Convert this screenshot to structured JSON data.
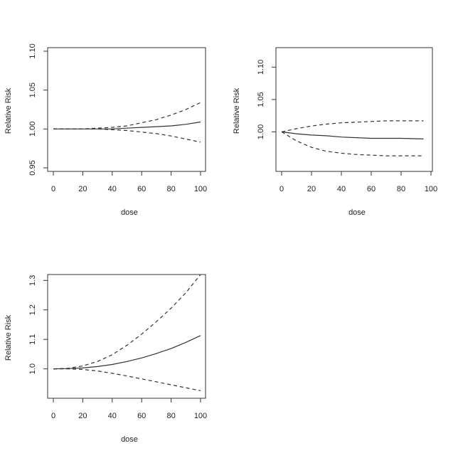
{
  "chart_data": [
    {
      "type": "line",
      "title": "",
      "xlabel": "dose",
      "ylabel": "Relative Risk",
      "xlim": [
        0,
        100
      ],
      "ylim": [
        0.95,
        1.1
      ],
      "xticks": [
        0,
        20,
        40,
        60,
        80,
        100
      ],
      "yticks": [
        0.95,
        1.0,
        1.05,
        1.1
      ],
      "ytick_labels": [
        "0.95",
        "1.00",
        "1.05",
        "1.10"
      ],
      "x": [
        0,
        10,
        20,
        30,
        40,
        50,
        60,
        70,
        80,
        90,
        100
      ],
      "series": [
        {
          "style": "solid",
          "values": [
            1.0,
            1.0,
            1.0,
            1.0,
            1.0,
            1.001,
            1.002,
            1.003,
            1.004,
            1.006,
            1.009
          ]
        },
        {
          "style": "dashed",
          "values": [
            1.0,
            1.0,
            1.0,
            1.001,
            1.002,
            1.004,
            1.008,
            1.012,
            1.018,
            1.025,
            1.034
          ]
        },
        {
          "style": "dashed",
          "values": [
            1.0,
            1.0,
            1.0,
            1.0,
            0.999,
            0.998,
            0.996,
            0.994,
            0.991,
            0.987,
            0.983
          ]
        }
      ]
    },
    {
      "type": "line",
      "title": "",
      "xlabel": "dose",
      "ylabel": "Relative Risk",
      "xlim": [
        0,
        100
      ],
      "ylim": [
        0.94,
        1.14
      ],
      "xticks": [
        0,
        20,
        40,
        60,
        80,
        100
      ],
      "yticks": [
        1.0,
        1.05,
        1.1
      ],
      "ytick_labels": [
        "1.00",
        "1.05",
        "1.10"
      ],
      "x": [
        0,
        10,
        20,
        30,
        40,
        50,
        60,
        70,
        80,
        95
      ],
      "series": [
        {
          "style": "solid",
          "values": [
            1.0,
            0.997,
            0.995,
            0.994,
            0.992,
            0.991,
            0.99,
            0.99,
            0.99,
            0.989
          ]
        },
        {
          "style": "dashed",
          "values": [
            1.0,
            1.005,
            1.009,
            1.012,
            1.014,
            1.015,
            1.016,
            1.017,
            1.017,
            1.017
          ]
        },
        {
          "style": "dashed",
          "values": [
            1.0,
            0.986,
            0.976,
            0.97,
            0.967,
            0.965,
            0.964,
            0.963,
            0.963,
            0.963
          ]
        }
      ]
    },
    {
      "type": "line",
      "title": "",
      "xlabel": "dose",
      "ylabel": "Relative Risk",
      "xlim": [
        0,
        100
      ],
      "ylim": [
        0.91,
        1.32
      ],
      "xticks": [
        0,
        20,
        40,
        60,
        80,
        100
      ],
      "yticks": [
        1.0,
        1.1,
        1.2,
        1.3
      ],
      "ytick_labels": [
        "1.0",
        "1.1",
        "1.2",
        "1.3"
      ],
      "x": [
        0,
        10,
        20,
        30,
        40,
        50,
        60,
        70,
        80,
        90,
        100
      ],
      "series": [
        {
          "style": "solid",
          "values": [
            1.0,
            1.001,
            1.003,
            1.008,
            1.015,
            1.025,
            1.037,
            1.052,
            1.069,
            1.09,
            1.113
          ]
        },
        {
          "style": "dashed",
          "values": [
            1.0,
            1.002,
            1.01,
            1.025,
            1.048,
            1.08,
            1.118,
            1.16,
            1.206,
            1.258,
            1.32
          ]
        },
        {
          "style": "dashed",
          "values": [
            1.0,
            1.0,
            0.998,
            0.993,
            0.985,
            0.976,
            0.966,
            0.956,
            0.946,
            0.936,
            0.926
          ]
        }
      ]
    }
  ]
}
